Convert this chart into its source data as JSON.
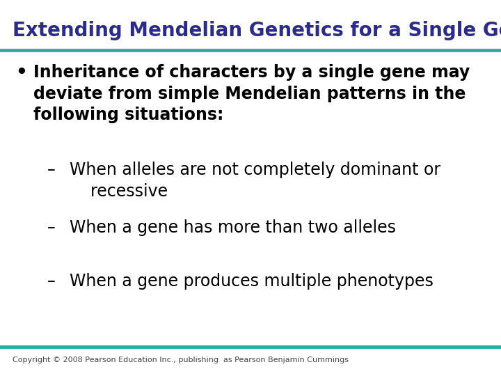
{
  "title": "Extending Mendelian Genetics for a Single Gene",
  "title_color": "#2B2B8C",
  "title_fontsize": 20,
  "bg_color": "#FFFFFF",
  "divider_color": "#2AADA8",
  "bullet_text": "Inheritance of characters by a single gene may\ndeviate from simple Mendelian patterns in the\nfollowing situations:",
  "sub_items": [
    "When alleles are not completely dominant or\n    recessive",
    "When a gene has more than two alleles",
    "When a gene produces multiple phenotypes"
  ],
  "body_fontsize": 17,
  "footer_text": "Copyright © 2008 Pearson Education Inc., publishing  as Pearson Benjamin Cummings",
  "footer_fontsize": 8
}
